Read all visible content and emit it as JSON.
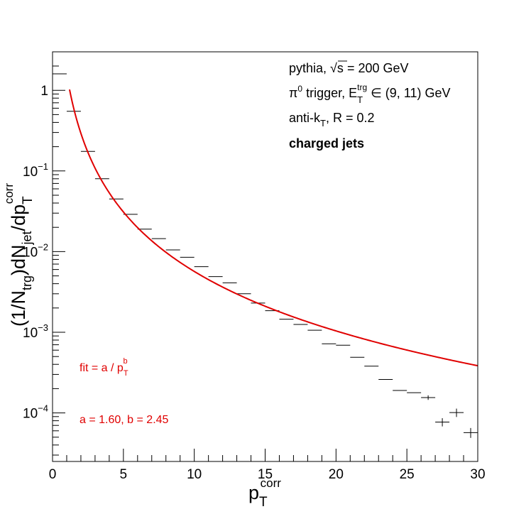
{
  "chart_data": {
    "type": "scatter",
    "title": "",
    "xlabel": {
      "base": "p",
      "sub": "T",
      "sup": "corr"
    },
    "ylabel": {
      "parts": [
        {
          "t": "(1/N",
          "s": "n"
        },
        {
          "t": "trg",
          "s": "sub"
        },
        {
          "t": ")dN",
          "s": "n"
        },
        {
          "t": "jet",
          "s": "sub"
        },
        {
          "t": "/dp",
          "s": "n"
        },
        {
          "t": "corr",
          "s": "supsub",
          "sub": "T"
        }
      ]
    },
    "xlim": [
      0,
      30
    ],
    "ylim": [
      2.5e-05,
      3.0
    ],
    "yscale": "log",
    "grid": false,
    "x_ticks": [
      "0",
      "5",
      "10",
      "15",
      "20",
      "25",
      "30"
    ],
    "y_ticks": [
      {
        "v": 1,
        "base": "1",
        "exp": ""
      },
      {
        "v": 0.1,
        "base": "10",
        "exp": "−1"
      },
      {
        "v": 0.01,
        "base": "10",
        "exp": "−2"
      },
      {
        "v": 0.001,
        "base": "10",
        "exp": "−3"
      },
      {
        "v": 0.0001,
        "base": "10",
        "exp": "−4"
      }
    ],
    "annotations": {
      "line1_prefix": "pythia, ",
      "line1_sqrt": "√s",
      "line1_suffix": " = 200 GeV",
      "line2_pi": "π",
      "line2_pi_sup": "0",
      "line2_trigger": " trigger, E",
      "line2_E_sub": "T",
      "line2_E_sup": "trg",
      "line2_range": " ∈ (9, 11) GeV",
      "line3_prefix": "anti-k",
      "line3_sub": "T",
      "line3_suffix": ", R = 0.2",
      "line4": "charged jets"
    },
    "fit_label": {
      "prefix": "fit = a / p",
      "sub": "T",
      "sup": "b"
    },
    "fit_params": "a = 1.60, b = 2.45",
    "colors": {
      "data": "#000000",
      "fit": "#e00000",
      "frame": "#000000"
    },
    "series": [
      {
        "type": "points",
        "x": [
          0.5,
          1.5,
          2.5,
          3.5,
          4.5,
          5.5,
          6.5,
          7.5,
          8.5,
          9.5,
          10.5,
          11.5,
          12.5,
          13.5,
          14.5,
          15.5,
          16.5,
          17.5,
          18.5,
          19.5,
          20.5,
          21.5,
          22.5,
          23.5,
          24.5,
          25.5,
          26.5,
          27.5,
          28.5,
          29.5
        ],
        "xerr": 0.5,
        "y": [
          1.6,
          0.55,
          0.175,
          0.08,
          0.045,
          0.029,
          0.019,
          0.0145,
          0.0105,
          0.0085,
          0.0065,
          0.0049,
          0.0041,
          0.003,
          0.0023,
          0.00185,
          0.00145,
          0.00125,
          0.00106,
          0.00072,
          0.00069,
          0.00049,
          0.00038,
          0.00026,
          0.00019,
          0.000178,
          0.000155,
          7.7e-05,
          0.000101,
          5.7e-05
        ],
        "yerr": [
          0,
          0,
          0,
          0,
          0,
          0,
          0,
          0,
          0,
          0,
          0,
          0,
          0,
          0,
          0,
          0,
          0,
          0,
          0,
          0,
          0,
          0,
          0,
          0,
          0,
          0,
          1e-05,
          9e-06,
          1.2e-05,
          8e-06
        ]
      },
      {
        "type": "fit",
        "function": "a / x^b",
        "a": 1.6,
        "b": 2.45,
        "x_range": [
          1.2,
          30
        ]
      }
    ]
  }
}
